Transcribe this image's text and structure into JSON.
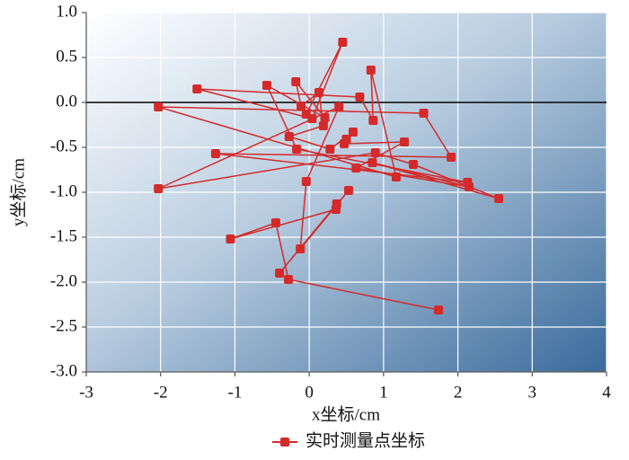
{
  "chart_data": {
    "type": "line",
    "xlabel": "x坐标/cm",
    "ylabel": "y坐标/cm",
    "xlim": [
      -3,
      4
    ],
    "xticks": [
      -3,
      -2,
      -1,
      0,
      1,
      2,
      3,
      4
    ],
    "ylim": [
      -3,
      1
    ],
    "yticks": [
      {
        "value": -3,
        "label": "-3.0"
      },
      {
        "value": -2.5,
        "label": "-2.5"
      },
      {
        "value": -2,
        "label": "-2.0"
      },
      {
        "value": -1.5,
        "label": "-1.5"
      },
      {
        "value": -1,
        "label": "-1.0"
      },
      {
        "value": -0.5,
        "label": "-0.5"
      },
      {
        "value": 0,
        "label": "0.0"
      },
      {
        "value": 0.5,
        "label": "0.5"
      },
      {
        "value": 1,
        "label": "1.0"
      }
    ],
    "grid": true,
    "legend": "bottom",
    "series": [
      {
        "name": "实时测量点坐标",
        "color": "#d42a2a",
        "x": [
          -0.04,
          0.45,
          0.04,
          -1.51,
          0.68,
          0.86,
          0.83,
          1.17,
          -2.03,
          1.54,
          1.91,
          -1.26,
          2.13,
          -0.17,
          -0.57,
          0.21,
          -0.18,
          -0.11,
          0.13,
          0.19,
          -0.27,
          0.28,
          0.59,
          0.5,
          0.47,
          1.28,
          0.63,
          2.15,
          0.85,
          2.55,
          1.4,
          0.89,
          -2.03,
          0.4,
          -0.04,
          -0.12,
          0.53,
          -0.4,
          0.37,
          0.36,
          -1.06,
          -0.45,
          -0.28,
          1.74
        ],
        "values": [
          -0.13,
          0.67,
          -0.18,
          0.15,
          0.06,
          -0.2,
          0.36,
          -0.83,
          -0.05,
          -0.12,
          -0.61,
          -0.57,
          -0.89,
          -0.52,
          0.19,
          -0.17,
          0.23,
          -0.04,
          0.11,
          -0.26,
          -0.38,
          -0.52,
          -0.33,
          -0.41,
          -0.46,
          -0.44,
          -0.73,
          -0.94,
          -0.67,
          -1.07,
          -0.69,
          -0.56,
          -0.96,
          -0.05,
          -0.88,
          -1.63,
          -0.98,
          -1.9,
          -1.13,
          -1.19,
          -1.52,
          -1.34,
          -1.97,
          -2.31
        ]
      }
    ]
  }
}
